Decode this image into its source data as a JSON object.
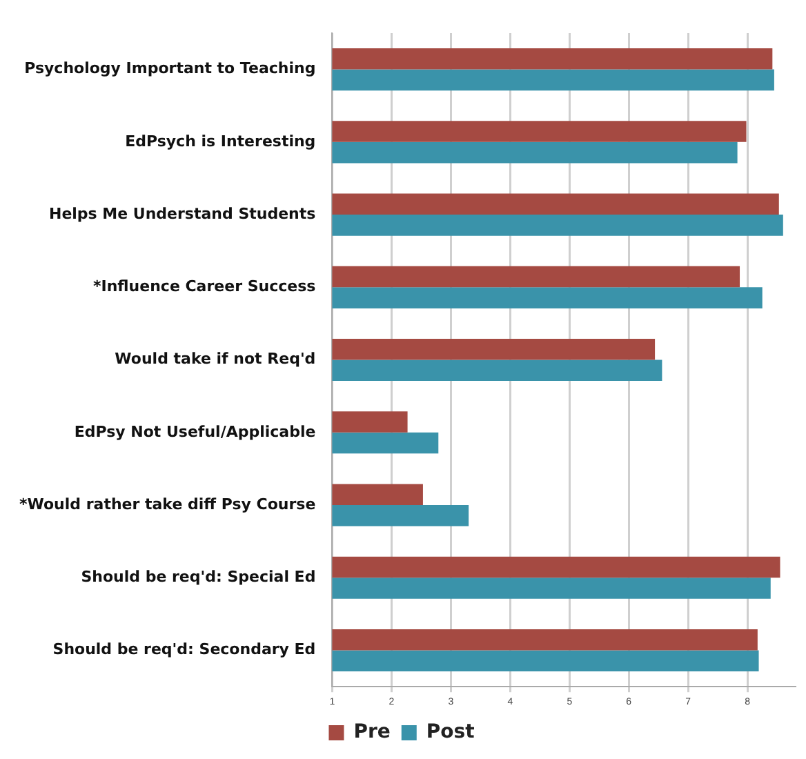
{
  "chart_data": {
    "type": "bar",
    "orientation": "horizontal",
    "categories": [
      "Psychology Important to Teaching",
      "EdPsych is Interesting",
      "Helps Me Understand Students",
      "*Influence Career Success",
      "Would take if not Req'd",
      "EdPsy Not Useful/Applicable",
      "*Would rather take diff Psy Course",
      "Should be req'd: Special Ed",
      "Should be req'd: Secondary Ed"
    ],
    "series": [
      {
        "name": "Pre",
        "color": "#a54a42",
        "values": [
          8.42,
          7.98,
          8.53,
          7.87,
          6.44,
          2.27,
          2.53,
          8.55,
          8.17
        ]
      },
      {
        "name": "Post",
        "color": "#3a93aa",
        "values": [
          8.45,
          7.83,
          8.6,
          8.25,
          6.56,
          2.79,
          3.3,
          8.39,
          8.19
        ]
      }
    ],
    "xlim": [
      1,
      8.8
    ],
    "xticks": [
      1,
      2,
      3,
      4,
      5,
      6,
      7,
      8
    ],
    "grid": "x",
    "legend": "bottom"
  }
}
